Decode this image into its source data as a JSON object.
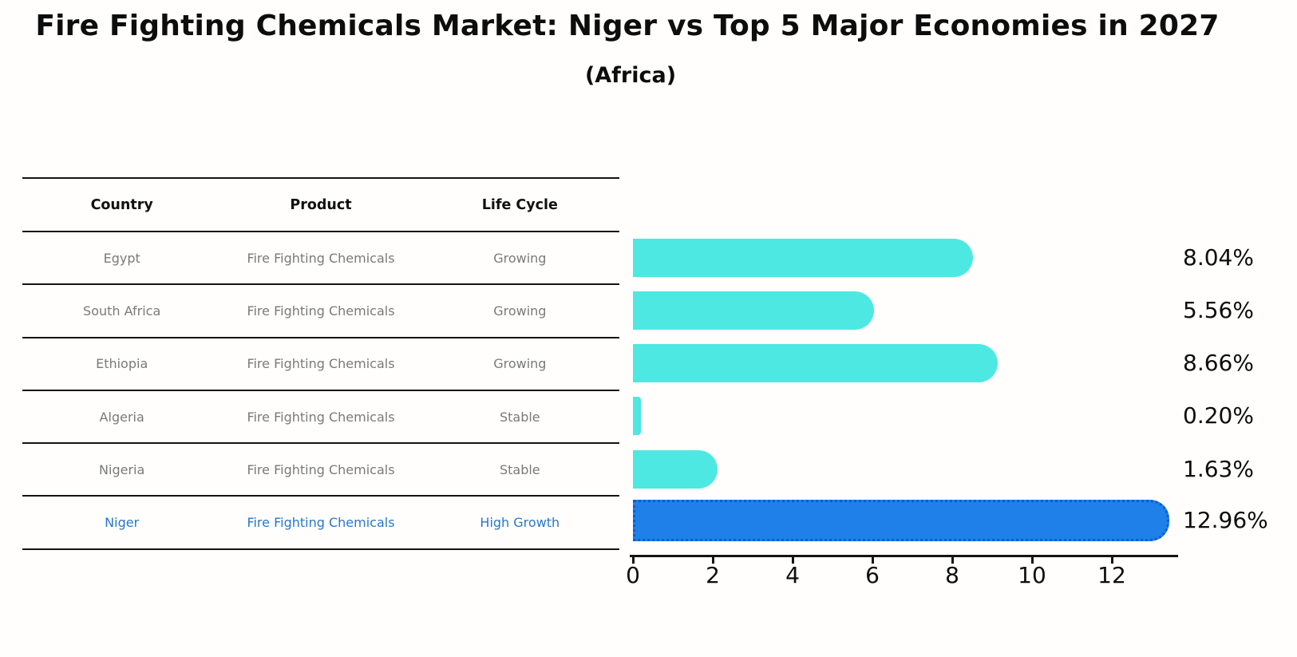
{
  "title": "Fire Fighting Chemicals Market: Niger vs Top 5 Major Economies in 2027",
  "subtitle": "(Africa)",
  "table": {
    "headers": [
      "Country",
      "Product",
      "Life Cycle"
    ],
    "rows": [
      {
        "country": "Egypt",
        "product": "Fire Fighting Chemicals",
        "life_cycle": "Growing"
      },
      {
        "country": "South Africa",
        "product": "Fire Fighting Chemicals",
        "life_cycle": "Growing"
      },
      {
        "country": "Ethiopia",
        "product": "Fire Fighting Chemicals",
        "life_cycle": "Growing"
      },
      {
        "country": "Algeria",
        "product": "Fire Fighting Chemicals",
        "life_cycle": "Stable"
      },
      {
        "country": "Nigeria",
        "product": "Fire Fighting Chemicals",
        "life_cycle": "Stable"
      },
      {
        "country": "Niger",
        "product": "Fire Fighting Chemicals",
        "life_cycle": "High Growth"
      }
    ],
    "highlight_row": "Niger"
  },
  "chart_data": {
    "type": "bar",
    "orientation": "horizontal",
    "categories": [
      "Egypt",
      "South Africa",
      "Ethiopia",
      "Algeria",
      "Nigeria",
      "Niger"
    ],
    "values": [
      8.04,
      5.56,
      8.66,
      0.2,
      1.63,
      12.96
    ],
    "labels": [
      "8.04%",
      "5.56%",
      "8.66%",
      "0.20%",
      "1.63%",
      "12.96%"
    ],
    "highlight_index": 5,
    "xticks": [
      0,
      2,
      4,
      6,
      8,
      10,
      12
    ],
    "xlim": [
      0,
      13.7
    ],
    "grid": false,
    "legend": "none",
    "bar_color": "#4DE8E2",
    "highlight_bar_color": "#1E80E8",
    "highlight_edge_color": "#0D5ECF",
    "highlight_text_color": "#2878C8"
  }
}
